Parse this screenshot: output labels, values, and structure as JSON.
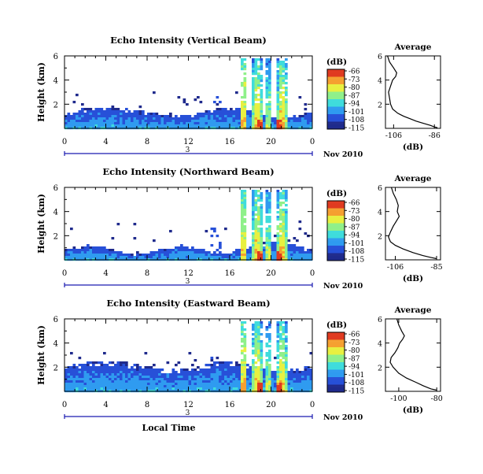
{
  "chart_data": [
    {
      "type": "heatmap",
      "title": "Echo Intensity (Vertical Beam)",
      "ylabel": "Height (km)",
      "y_ticks": [
        "6",
        "4",
        "2"
      ],
      "ylim": [
        0,
        6
      ],
      "x_ticks": [
        "0",
        "4",
        "8",
        "12",
        "16",
        "20",
        "0"
      ],
      "xlim": [
        0,
        24
      ],
      "date_day": "3",
      "date_label": "Nov 2010",
      "colorbar": {
        "unit_label": "(dB)",
        "ticks": [
          "-66",
          "-73",
          "-80",
          "-87",
          "-94",
          "-101",
          "-108",
          "-115"
        ],
        "range": [
          -115,
          -66
        ]
      },
      "profile": {
        "title": "Average",
        "xlabel": "(dB)",
        "x_ticks": [
          "-106",
          "-86"
        ],
        "xlim": [
          -110,
          -83
        ],
        "y_ticks": [
          "6",
          "4",
          "2"
        ],
        "points": [
          [
            -109,
            6.0
          ],
          [
            -108,
            5.5
          ],
          [
            -106,
            5.0
          ],
          [
            -104.5,
            4.6
          ],
          [
            -105,
            4.3
          ],
          [
            -106.5,
            4.0
          ],
          [
            -107.5,
            3.5
          ],
          [
            -108.5,
            3.0
          ],
          [
            -108,
            2.5
          ],
          [
            -107.5,
            2.0
          ],
          [
            -106.5,
            1.6
          ],
          [
            -104,
            1.25
          ],
          [
            -101,
            1.0
          ],
          [
            -98,
            0.8
          ],
          [
            -95,
            0.6
          ],
          [
            -91,
            0.4
          ],
          [
            -88,
            0.25
          ],
          [
            -86,
            0.12
          ],
          [
            -84.5,
            0.05
          ]
        ]
      }
    },
    {
      "type": "heatmap",
      "title": "Echo Intensity (Northward Beam)",
      "ylabel": "Height (km)",
      "y_ticks": [
        "6",
        "4",
        "2"
      ],
      "ylim": [
        0,
        6
      ],
      "x_ticks": [
        "0",
        "4",
        "8",
        "12",
        "16",
        "20",
        "0"
      ],
      "xlim": [
        0,
        24
      ],
      "date_day": "3",
      "date_label": "Nov 2010",
      "colorbar": {
        "unit_label": "(dB)",
        "ticks": [
          "-66",
          "-73",
          "-80",
          "-87",
          "-94",
          "-101",
          "-108",
          "-115"
        ],
        "range": [
          -115,
          -66
        ]
      },
      "profile": {
        "title": "Average",
        "xlabel": "(dB)",
        "x_ticks": [
          "-106",
          "-85"
        ],
        "xlim": [
          -111,
          -83
        ],
        "y_ticks": [
          "6",
          "4",
          "2"
        ],
        "points": [
          [
            -108,
            6.0
          ],
          [
            -107,
            5.5
          ],
          [
            -105.5,
            5.0
          ],
          [
            -104.5,
            4.5
          ],
          [
            -105,
            4.0
          ],
          [
            -104,
            3.6
          ],
          [
            -105.5,
            3.2
          ],
          [
            -107,
            2.8
          ],
          [
            -108.5,
            2.3
          ],
          [
            -109.5,
            1.9
          ],
          [
            -108.5,
            1.5
          ],
          [
            -106,
            1.2
          ],
          [
            -102,
            0.9
          ],
          [
            -97,
            0.6
          ],
          [
            -92,
            0.35
          ],
          [
            -88,
            0.2
          ],
          [
            -85,
            0.1
          ]
        ]
      }
    },
    {
      "type": "heatmap",
      "title": "Echo Intensity (Eastward Beam)",
      "ylabel": "Height (km)",
      "y_ticks": [
        "6",
        "4",
        "2"
      ],
      "ylim": [
        0,
        6
      ],
      "x_ticks": [
        "0",
        "4",
        "8",
        "12",
        "16",
        "20",
        "0"
      ],
      "xlim": [
        0,
        24
      ],
      "date_day": "3",
      "date_label": "Nov 2010",
      "xlabel": "Local Time",
      "colorbar": {
        "unit_label": "(dB)",
        "ticks": [
          "-66",
          "-73",
          "-80",
          "-87",
          "-94",
          "-101",
          "-108",
          "-115"
        ],
        "range": [
          -115,
          -66
        ]
      },
      "profile": {
        "title": "Average",
        "xlabel": "(dB)",
        "x_ticks": [
          "-100",
          "-80"
        ],
        "xlim": [
          -107,
          -78
        ],
        "y_ticks": [
          "6",
          "4",
          "2"
        ],
        "points": [
          [
            -101,
            6.0
          ],
          [
            -100,
            5.5
          ],
          [
            -98.5,
            5.0
          ],
          [
            -97,
            4.6
          ],
          [
            -98,
            4.3
          ],
          [
            -99.5,
            4.0
          ],
          [
            -100.5,
            3.6
          ],
          [
            -102,
            3.2
          ],
          [
            -104,
            2.8
          ],
          [
            -104.5,
            2.4
          ],
          [
            -103,
            2.0
          ],
          [
            -100,
            1.5
          ],
          [
            -96,
            1.1
          ],
          [
            -91,
            0.75
          ],
          [
            -87,
            0.45
          ],
          [
            -83,
            0.2
          ],
          [
            -80,
            0.1
          ]
        ]
      }
    }
  ],
  "colors": {
    "colormap": [
      "#1f2a8c",
      "#2750d8",
      "#2f9bf0",
      "#3fdcdc",
      "#8ff08a",
      "#e8f040",
      "#f5a030",
      "#e03a20"
    ],
    "axis": "#000000",
    "date_axis": "#1a1ab0"
  }
}
